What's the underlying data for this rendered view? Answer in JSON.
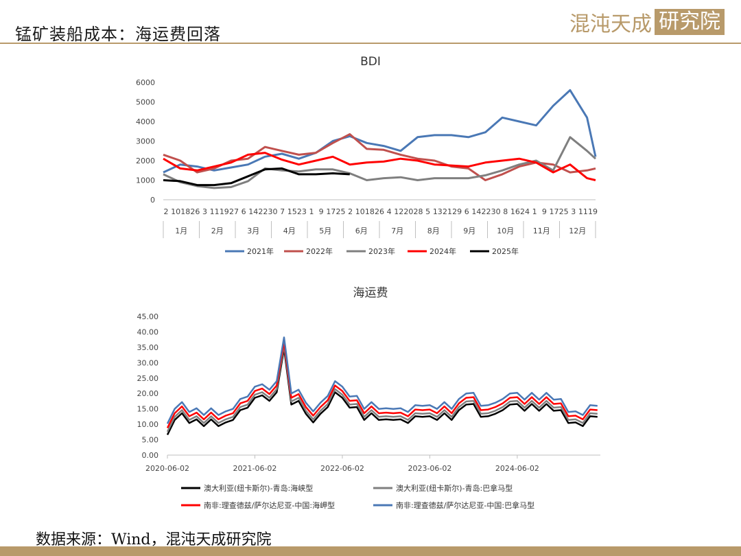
{
  "header": {
    "title": "锰矿装船成本：海运费回落",
    "logo_main": "混沌天成",
    "logo_boxed": "研究院"
  },
  "footer": {
    "source": "数据来源：Wind，混沌天成研究院"
  },
  "colors": {
    "accent": "#b89a6a"
  },
  "chart_data": [
    {
      "type": "line",
      "title": "BDI",
      "ylim": [
        0,
        6000
      ],
      "yticks": [
        "0",
        "1000",
        "2000",
        "3000",
        "4000",
        "5000",
        "6000"
      ],
      "x_day_labels": [
        "2",
        "10",
        "18",
        "26",
        "3",
        "11",
        "19",
        "27",
        "6",
        "14",
        "22",
        "30",
        "7",
        "15",
        "23",
        "1",
        "9",
        "17",
        "25",
        "2",
        "10",
        "18",
        "26",
        "4",
        "12",
        "20",
        "28",
        "5",
        "13",
        "21",
        "29",
        "6",
        "14",
        "22",
        "30",
        "8",
        "16",
        "24",
        "1",
        "9",
        "17",
        "25",
        "3",
        "11",
        "19"
      ],
      "month_labels": [
        "1月",
        "2月",
        "3月",
        "4月",
        "5月",
        "6月",
        "7月",
        "8月",
        "9月",
        "10月",
        "11月",
        "12月"
      ],
      "grid": false,
      "legend_position": "bottom",
      "series": [
        {
          "name": "2021年",
          "color": "#4a78b5",
          "week": [
            0,
            2,
            4,
            6,
            8,
            10,
            12,
            14,
            16,
            18,
            20,
            22,
            24,
            26,
            28,
            30,
            32,
            34,
            36,
            38,
            40,
            42,
            44,
            46,
            48,
            50,
            51
          ],
          "values": [
            1400,
            1800,
            1700,
            1500,
            1650,
            1800,
            2200,
            2350,
            2100,
            2400,
            3000,
            3250,
            2900,
            2750,
            2500,
            3200,
            3300,
            3300,
            3200,
            3450,
            4200,
            4000,
            3800,
            4800,
            5600,
            4200,
            2200
          ]
        },
        {
          "name": "2022年",
          "color": "#c0504d",
          "week": [
            0,
            2,
            4,
            6,
            8,
            10,
            12,
            14,
            16,
            18,
            20,
            22,
            24,
            26,
            28,
            30,
            32,
            34,
            36,
            38,
            40,
            42,
            44,
            46,
            48,
            50,
            51
          ],
          "values": [
            2300,
            2000,
            1400,
            1600,
            2000,
            2100,
            2700,
            2500,
            2300,
            2400,
            2900,
            3350,
            2600,
            2550,
            2300,
            2100,
            2000,
            1700,
            1600,
            1000,
            1300,
            1700,
            1900,
            1800,
            1400,
            1500,
            1600
          ]
        },
        {
          "name": "2023年",
          "color": "#7f7f7f",
          "week": [
            0,
            2,
            4,
            6,
            8,
            10,
            12,
            14,
            16,
            18,
            20,
            22,
            24,
            26,
            28,
            30,
            32,
            34,
            36,
            38,
            40,
            42,
            44,
            46,
            48,
            50,
            51
          ],
          "values": [
            1300,
            900,
            700,
            600,
            650,
            950,
            1600,
            1500,
            1450,
            1550,
            1550,
            1350,
            1000,
            1100,
            1150,
            1000,
            1100,
            1100,
            1100,
            1250,
            1500,
            1800,
            2000,
            1500,
            3200,
            2500,
            2100
          ]
        },
        {
          "name": "2024年",
          "color": "#ff0000",
          "week": [
            0,
            2,
            4,
            6,
            8,
            10,
            12,
            14,
            16,
            18,
            20,
            22,
            24,
            26,
            28,
            30,
            32,
            34,
            36,
            38,
            40,
            42,
            44,
            46,
            48,
            50,
            51
          ],
          "values": [
            2100,
            1600,
            1500,
            1700,
            1900,
            2300,
            2400,
            2050,
            1800,
            2000,
            2200,
            1800,
            1900,
            1950,
            2100,
            2000,
            1800,
            1750,
            1700,
            1900,
            2000,
            2100,
            1900,
            1400,
            1800,
            1100,
            1000
          ]
        },
        {
          "name": "2025年",
          "color": "#000000",
          "week": [
            0,
            2,
            4,
            6,
            8,
            10,
            12,
            14,
            16,
            18,
            20,
            22
          ],
          "values": [
            1000,
            950,
            750,
            750,
            850,
            1200,
            1550,
            1600,
            1300,
            1300,
            1350,
            1300
          ]
        }
      ]
    },
    {
      "type": "line",
      "title": "海运费",
      "ylim": [
        0,
        45
      ],
      "yticks": [
        "0.00",
        "5.00",
        "10.00",
        "15.00",
        "20.00",
        "25.00",
        "30.00",
        "35.00",
        "40.00",
        "45.00"
      ],
      "xticks": [
        "2020-06-02",
        "2021-06-02",
        "2022-06-02",
        "2023-06-02",
        "2024-06-02"
      ],
      "grid": false,
      "legend_position": "bottom",
      "series": [
        {
          "name": "澳大利亚(纽卡斯尔)-青岛:海峡型",
          "color": "#000000",
          "offset": -1.0
        },
        {
          "name": "澳大利亚(纽卡斯尔)-青岛:巴拿马型",
          "color": "#7f7f7f",
          "offset": 0.0
        },
        {
          "name": "南非:理查德兹/萨尔达尼亚-中国:海岬型",
          "color": "#ff0000",
          "offset": 1.2
        },
        {
          "name": "南非:理查德兹/萨尔达尼亚-中国:巴拿马型",
          "color": "#4a78b5",
          "offset": 2.6
        }
      ],
      "base_dates": [
        "2020-06",
        "2020-07",
        "2020-08",
        "2020-09",
        "2020-10",
        "2020-11",
        "2020-12",
        "2021-01",
        "2021-02",
        "2021-03",
        "2021-04",
        "2021-05",
        "2021-06",
        "2021-07",
        "2021-08",
        "2021-09",
        "2021-10",
        "2021-11",
        "2021-12",
        "2022-01",
        "2022-02",
        "2022-03",
        "2022-04",
        "2022-05",
        "2022-06",
        "2022-07",
        "2022-08",
        "2022-09",
        "2022-10",
        "2022-11",
        "2022-12",
        "2023-01",
        "2023-02",
        "2023-03",
        "2023-04",
        "2023-05",
        "2023-06",
        "2023-07",
        "2023-08",
        "2023-09",
        "2023-10",
        "2023-11",
        "2023-12",
        "2024-01",
        "2024-02",
        "2024-03",
        "2024-04",
        "2024-05",
        "2024-06",
        "2024-07",
        "2024-08",
        "2024-09",
        "2024-10",
        "2024-11",
        "2024-12",
        "2025-01",
        "2025-02",
        "2025-03",
        "2025-04",
        "2025-05"
      ],
      "base_values": [
        7,
        13,
        14,
        12,
        12,
        11,
        12,
        11,
        11,
        13,
        15,
        17,
        19,
        21,
        18,
        22,
        35,
        18,
        18,
        15,
        11,
        15,
        16,
        22,
        19,
        17,
        16,
        13,
        14,
        13,
        12,
        13,
        12,
        12,
        13,
        14,
        13,
        13,
        14,
        13,
        15,
        18,
        17,
        14,
        13,
        15,
        15,
        18,
        17,
        16,
        17,
        16,
        17,
        16,
        15,
        12,
        11,
        11,
        13,
        14
      ]
    }
  ]
}
